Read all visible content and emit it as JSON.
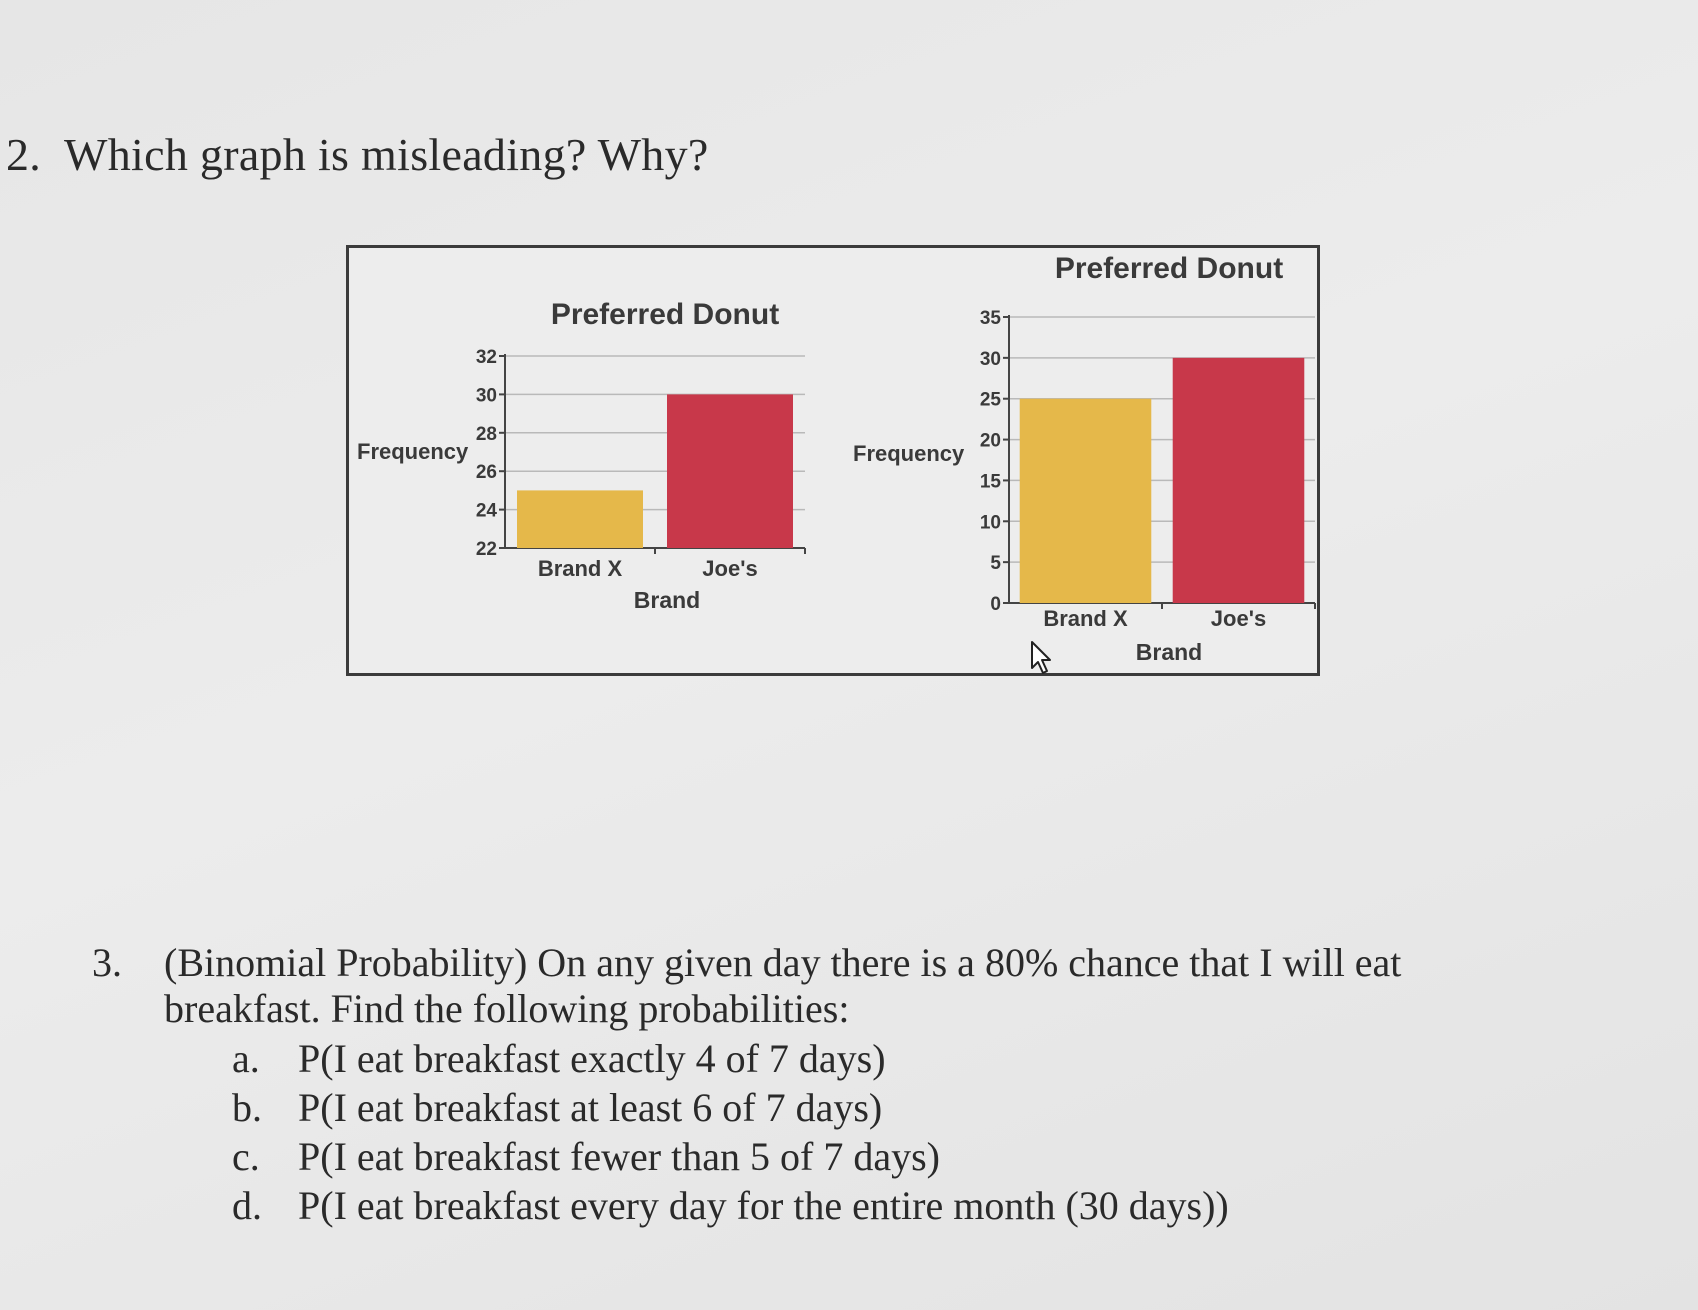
{
  "question2": {
    "number": "2.",
    "text": "Which graph is misleading? Why?"
  },
  "chart_data": [
    {
      "type": "bar",
      "title": "Preferred Donut",
      "xlabel": "Brand",
      "ylabel": "Frequency",
      "categories": [
        "Brand X",
        "Joe's"
      ],
      "values": [
        25,
        30
      ],
      "ylim": [
        22,
        32
      ],
      "yticks": [
        22,
        24,
        26,
        28,
        30,
        32
      ],
      "colors": [
        "#e5b84a",
        "#c8384a"
      ],
      "grid": true
    },
    {
      "type": "bar",
      "title": "Preferred Donut",
      "xlabel": "Brand",
      "ylabel": "Frequency",
      "categories": [
        "Brand X",
        "Joe's"
      ],
      "values": [
        25,
        30
      ],
      "ylim": [
        0,
        35
      ],
      "yticks": [
        0,
        5,
        10,
        15,
        20,
        25,
        30,
        35
      ],
      "colors": [
        "#e5b84a",
        "#c8384a"
      ],
      "grid": true
    }
  ],
  "question3": {
    "number": "3.",
    "line1": "(Binomial Probability) On any given day there is a 80% chance that I will eat",
    "line2": "breakfast.  Find the following probabilities:",
    "items": [
      {
        "label": "a.",
        "text": "P(I eat breakfast exactly 4 of 7 days)"
      },
      {
        "label": "b.",
        "text": "P(I eat breakfast at least 6 of 7 days)"
      },
      {
        "label": "c.",
        "text": "P(I eat breakfast fewer than 5 of 7 days)"
      },
      {
        "label": "d.",
        "text": "P(I eat breakfast every day for the entire month (30 days))"
      }
    ]
  }
}
